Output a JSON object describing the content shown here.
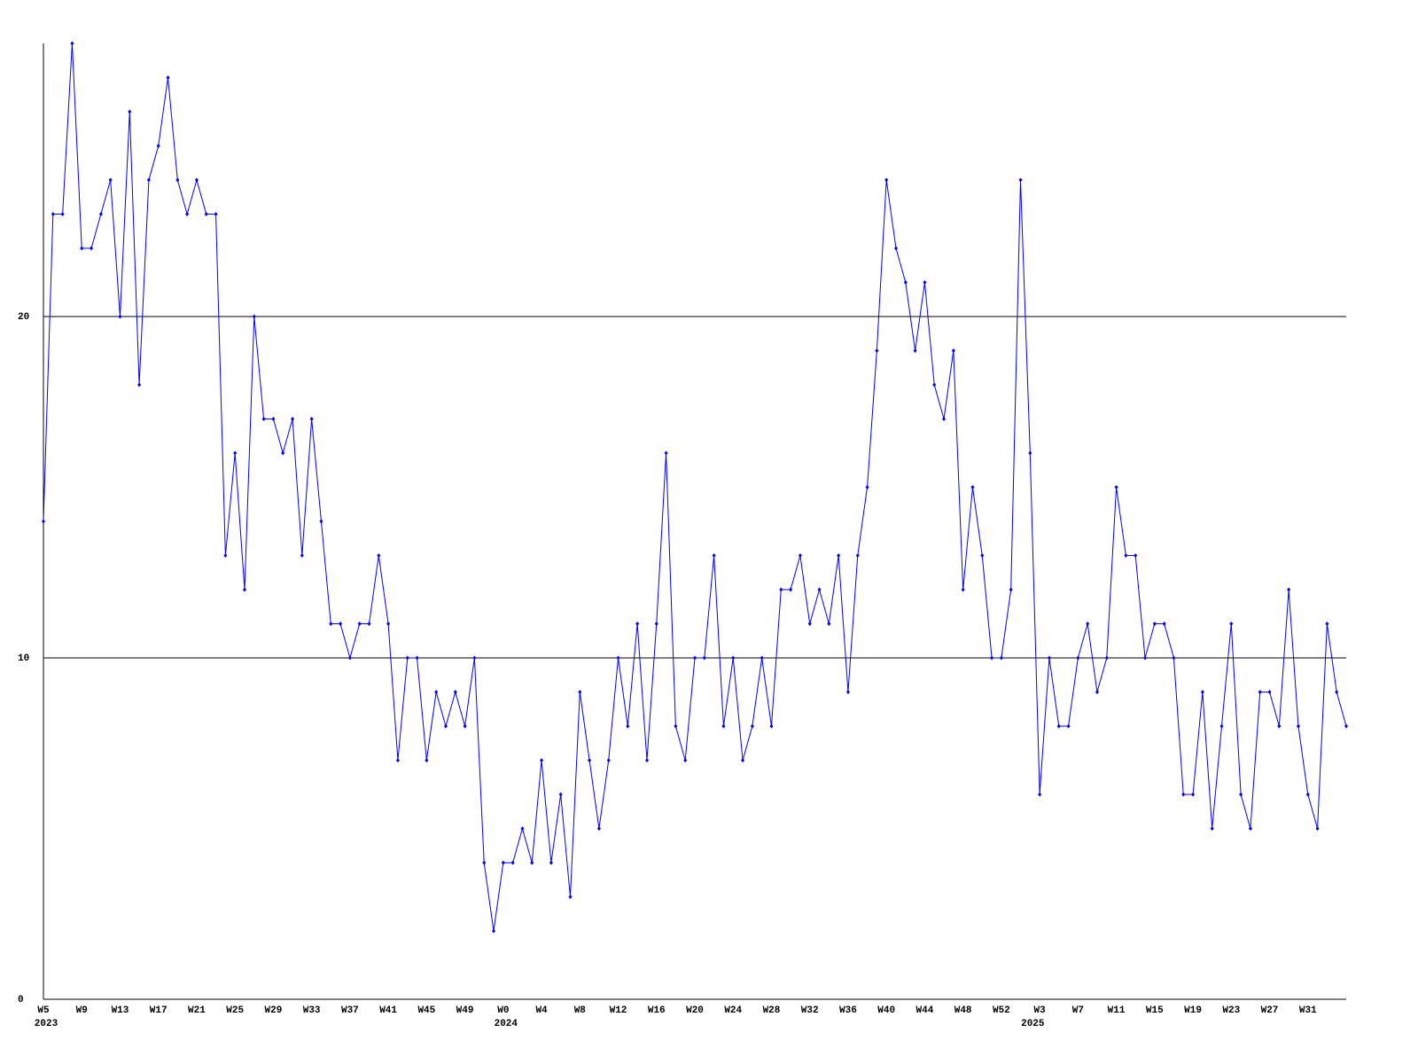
{
  "chart_data": {
    "type": "line",
    "color": "#0000ff",
    "grid": true,
    "ylim": [
      0,
      28
    ],
    "yticks": [
      0,
      10,
      20
    ],
    "categories": [
      "W5",
      null,
      null,
      null,
      "W9",
      null,
      null,
      null,
      "W13",
      null,
      null,
      null,
      "W17",
      null,
      null,
      null,
      "W21",
      null,
      null,
      null,
      "W25",
      null,
      null,
      null,
      "W29",
      null,
      null,
      null,
      "W33",
      null,
      null,
      null,
      "W37",
      null,
      null,
      null,
      "W41",
      null,
      null,
      null,
      "W45",
      null,
      null,
      null,
      "W49",
      null,
      null,
      null,
      "W0",
      null,
      null,
      null,
      "W4",
      null,
      null,
      null,
      "W8",
      null,
      null,
      null,
      "W12",
      null,
      null,
      null,
      "W16",
      null,
      null,
      null,
      "W20",
      null,
      null,
      null,
      "W24",
      null,
      null,
      null,
      "W28",
      null,
      null,
      null,
      "W32",
      null,
      null,
      null,
      "W36",
      null,
      null,
      null,
      "W40",
      null,
      null,
      null,
      "W44",
      null,
      null,
      null,
      "W48",
      null,
      null,
      null,
      "W52",
      null,
      null,
      null,
      "W3",
      null,
      null,
      null,
      "W7",
      null,
      null,
      null,
      "W11",
      null,
      null,
      null,
      "W15",
      null,
      null,
      null,
      "W19",
      null,
      null,
      null,
      "W23",
      null,
      null,
      null,
      "W27",
      null,
      null,
      null,
      "W31",
      null,
      null,
      null,
      null
    ],
    "years": [
      "2023",
      null,
      null,
      null,
      null,
      null,
      null,
      null,
      null,
      null,
      null,
      null,
      null,
      null,
      null,
      null,
      null,
      null,
      null,
      null,
      null,
      null,
      null,
      null,
      null,
      null,
      null,
      null,
      null,
      null,
      null,
      null,
      null,
      null,
      null,
      null,
      null,
      null,
      null,
      null,
      null,
      null,
      null,
      null,
      null,
      null,
      null,
      null,
      "2024",
      null,
      null,
      null,
      null,
      null,
      null,
      null,
      null,
      null,
      null,
      null,
      null,
      null,
      null,
      null,
      null,
      null,
      null,
      null,
      null,
      null,
      null,
      null,
      null,
      null,
      null,
      null,
      null,
      null,
      null,
      null,
      null,
      null,
      null,
      null,
      null,
      null,
      null,
      null,
      null,
      null,
      null,
      null,
      null,
      null,
      null,
      null,
      null,
      null,
      null,
      null,
      null,
      null,
      null,
      "2025",
      null,
      null,
      null,
      null,
      null,
      null,
      null,
      null,
      null,
      null,
      null,
      null,
      null,
      null,
      null,
      null,
      null,
      null,
      null,
      null,
      null,
      null,
      null,
      null,
      null,
      null,
      null,
      null,
      null,
      null,
      null,
      null,
      null,
      null,
      null
    ],
    "values": [
      14,
      23,
      23,
      28,
      22,
      22,
      23,
      24,
      20,
      26,
      18,
      24,
      25,
      27,
      24,
      23,
      24,
      23,
      23,
      13,
      16,
      12,
      20,
      17,
      17,
      16,
      17,
      13,
      17,
      14,
      11,
      11,
      10,
      11,
      11,
      13,
      11,
      7,
      10,
      10,
      7,
      9,
      8,
      9,
      8,
      10,
      4,
      2,
      4,
      4,
      5,
      4,
      7,
      4,
      6,
      3,
      9,
      7,
      5,
      7,
      10,
      8,
      11,
      7,
      11,
      16,
      8,
      7,
      10,
      10,
      13,
      8,
      10,
      7,
      8,
      10,
      8,
      12,
      12,
      13,
      11,
      12,
      11,
      13,
      9,
      13,
      15,
      19,
      24,
      22,
      21,
      19,
      21,
      18,
      17,
      19,
      12,
      15,
      13,
      10,
      10,
      12,
      24,
      16,
      6,
      10,
      8,
      8,
      10,
      11,
      9,
      10,
      15,
      13,
      13,
      10,
      11,
      11,
      10,
      6,
      6,
      9,
      5,
      8,
      11,
      6,
      5,
      9,
      9,
      8,
      12,
      8,
      6,
      5,
      11,
      9,
      8
    ]
  }
}
